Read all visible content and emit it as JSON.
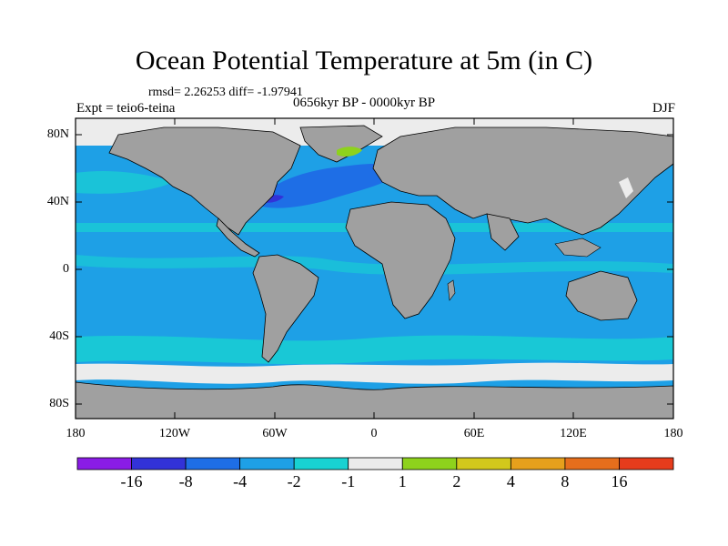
{
  "title": "Ocean Potential Temperature at 5m (in C)",
  "stats": "rmsd= 2.26253 diff= -1.97941",
  "expt": "Expt = teio6-teina",
  "period": "0656kyr BP - 0000kyr BP",
  "season": "DJF",
  "lat_labels": [
    "80N",
    "40N",
    "0",
    "40S",
    "80S"
  ],
  "lon_labels": [
    "180",
    "120W",
    "60W",
    "0",
    "60E",
    "120E",
    "180"
  ],
  "colorbar": {
    "labels": [
      "-16",
      "-8",
      "-4",
      "-2",
      "-1",
      "1",
      "2",
      "4",
      "8",
      "16"
    ],
    "colors": [
      "#8a1ce6",
      "#3232d8",
      "#1e6ee6",
      "#1ea0e6",
      "#18d2d2",
      "#ececec",
      "#8ed21c",
      "#d2c81c",
      "#e6a01c",
      "#e66e1c",
      "#e63c1c"
    ]
  },
  "palette": {
    "land": "#a0a0a0",
    "ocean": "#1ea0e6",
    "ocean_light": "#18d2d2",
    "ocean_dark": "#1e6ee6",
    "ice": "#ececec"
  }
}
